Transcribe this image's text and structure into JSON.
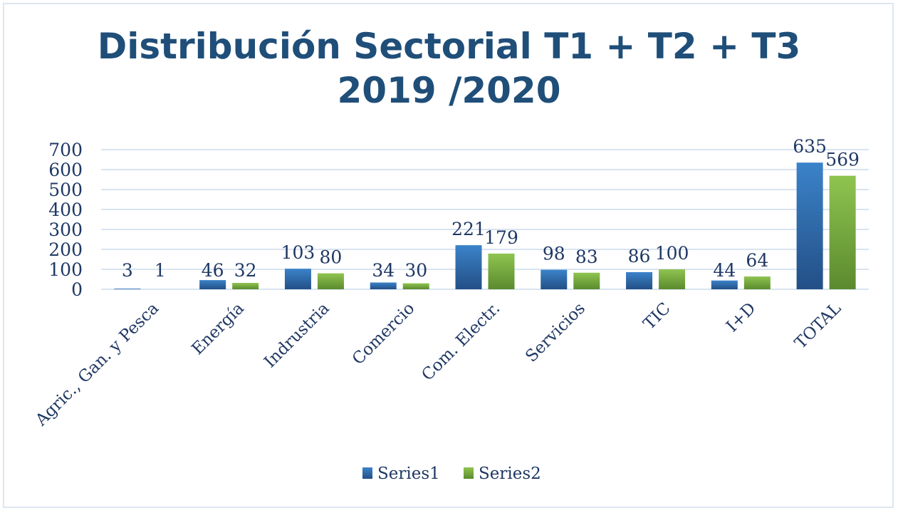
{
  "chart_data": {
    "type": "bar",
    "title": "Distribución Sectorial T1 + T2 + T3",
    "subtitle": "2019 /2020",
    "categories": [
      "Agric., Gan. y Pesca",
      "Energía",
      "Indrustria",
      "Comercio",
      "Com. Electr.",
      "Servicios",
      "TIC",
      "I+D",
      "TOTAL"
    ],
    "series": [
      {
        "name": "Series1",
        "values": [
          3,
          46,
          103,
          34,
          221,
          98,
          86,
          44,
          635
        ],
        "color": "#2e75b6"
      },
      {
        "name": "Series2",
        "values": [
          1,
          32,
          80,
          30,
          179,
          83,
          100,
          64,
          569
        ],
        "color": "#70ad47"
      }
    ],
    "ylim": [
      0,
      700
    ],
    "yticks": [
      0,
      100,
      200,
      300,
      400,
      500,
      600,
      700
    ],
    "grid": true,
    "legend": "bottom",
    "xlabel": "",
    "ylabel": ""
  }
}
